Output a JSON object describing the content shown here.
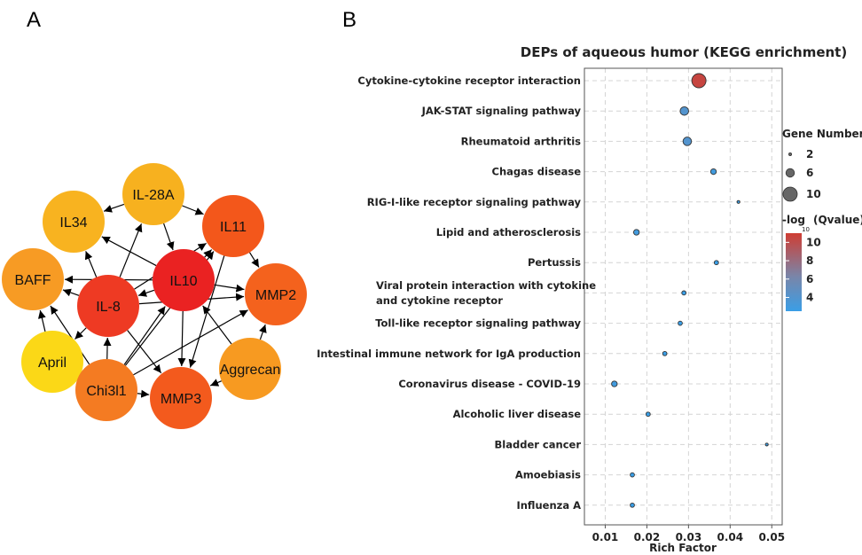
{
  "panel_a": {
    "letter": "A",
    "nodes": [
      {
        "id": "IL-28A",
        "label": "IL-28A",
        "color": "#f7b11f"
      },
      {
        "id": "IL34",
        "label": "IL34",
        "color": "#f8b320"
      },
      {
        "id": "IL11",
        "label": "IL11",
        "color": "#f3571b"
      },
      {
        "id": "BAFF",
        "label": "BAFF",
        "color": "#f79b24"
      },
      {
        "id": "IL10",
        "label": "IL10",
        "color": "#ea2222"
      },
      {
        "id": "IL-8",
        "label": "IL-8",
        "color": "#ee3a23"
      },
      {
        "id": "MMP2",
        "label": "MMP2",
        "color": "#f4621d"
      },
      {
        "id": "April",
        "label": "April",
        "color": "#fbd817"
      },
      {
        "id": "Aggrecan",
        "label": "Aggrecan",
        "color": "#f79a21"
      },
      {
        "id": "Chi3l1",
        "label": "Chi3l1",
        "color": "#f47b22"
      },
      {
        "id": "MMP3",
        "label": "MMP3",
        "color": "#f35a1d"
      }
    ],
    "edges": [
      [
        "IL-28A",
        "IL11"
      ],
      [
        "IL-28A",
        "IL34"
      ],
      [
        "IL-28A",
        "IL10"
      ],
      [
        "IL10",
        "IL34"
      ],
      [
        "IL10",
        "BAFF"
      ],
      [
        "IL10",
        "IL11"
      ],
      [
        "IL10",
        "MMP2"
      ],
      [
        "IL10",
        "MMP3"
      ],
      [
        "IL10",
        "IL-8"
      ],
      [
        "IL-8",
        "IL34"
      ],
      [
        "IL-8",
        "BAFF"
      ],
      [
        "IL-8",
        "IL-28A"
      ],
      [
        "IL-8",
        "IL11"
      ],
      [
        "IL-8",
        "MMP2"
      ],
      [
        "IL-8",
        "MMP3"
      ],
      [
        "IL-8",
        "April"
      ],
      [
        "IL11",
        "MMP2"
      ],
      [
        "IL11",
        "MMP3"
      ],
      [
        "Chi3l1",
        "IL-8"
      ],
      [
        "Chi3l1",
        "IL10"
      ],
      [
        "Chi3l1",
        "MMP2"
      ],
      [
        "Chi3l1",
        "MMP3"
      ],
      [
        "Chi3l1",
        "BAFF"
      ],
      [
        "Chi3l1",
        "IL11"
      ],
      [
        "Aggrecan",
        "MMP3"
      ],
      [
        "Aggrecan",
        "MMP2"
      ],
      [
        "Aggrecan",
        "IL10"
      ],
      [
        "April",
        "BAFF"
      ]
    ]
  },
  "panel_b": {
    "letter": "B"
  },
  "chart_data": {
    "type": "scatter",
    "title": "DEPs of aqueous humor (KEGG enrichment)",
    "xlabel": "Rich Factor",
    "ylabel": "",
    "xlim": [
      0.005,
      0.0525
    ],
    "x_ticks": [
      0.01,
      0.02,
      0.03,
      0.04,
      0.05
    ],
    "x_tick_labels": [
      "0.01",
      "0.02",
      "0.03",
      "0.04",
      "0.05"
    ],
    "grid": true,
    "categories": [
      "Cytokine-cytokine receptor interaction",
      "JAK-STAT signaling pathway",
      "Rheumatoid arthritis",
      "Chagas disease",
      "RIG-I-like receptor signaling pathway",
      "Lipid and atherosclerosis",
      "Pertussis",
      "Viral protein interaction with cytokine and cytokine receptor",
      "Toll-like receptor signaling pathway",
      "Intestinal immune network for IgA production",
      "Coronavirus disease - COVID-19",
      "Alcoholic liver disease",
      "Bladder cancer",
      "Amoebiasis",
      "Influenza A"
    ],
    "category_label_lines": [
      [
        "Cytokine-cytokine receptor interaction"
      ],
      [
        "JAK-STAT signaling pathway"
      ],
      [
        "Rheumatoid arthritis"
      ],
      [
        "Chagas disease"
      ],
      [
        "RIG-I-like receptor signaling pathway"
      ],
      [
        "Lipid and atherosclerosis"
      ],
      [
        "Pertussis"
      ],
      [
        "Viral protein interaction with cytokine",
        "and cytokine receptor"
      ],
      [
        "Toll-like receptor signaling pathway"
      ],
      [
        "Intestinal immune network for IgA production"
      ],
      [
        "Coronavirus disease - COVID-19"
      ],
      [
        "Alcoholic liver disease"
      ],
      [
        "Bladder cancer"
      ],
      [
        "Amoebiasis"
      ],
      [
        "Influenza A"
      ]
    ],
    "points": [
      {
        "rich_factor": 0.0325,
        "gene_number": 10,
        "neg_log10_qvalue": 10.5
      },
      {
        "rich_factor": 0.029,
        "gene_number": 6,
        "neg_log10_qvalue": 4
      },
      {
        "rich_factor": 0.0297,
        "gene_number": 6,
        "neg_log10_qvalue": 4
      },
      {
        "rich_factor": 0.036,
        "gene_number": 4,
        "neg_log10_qvalue": 3
      },
      {
        "rich_factor": 0.042,
        "gene_number": 2,
        "neg_log10_qvalue": 2.5
      },
      {
        "rich_factor": 0.0175,
        "gene_number": 4,
        "neg_log10_qvalue": 3
      },
      {
        "rich_factor": 0.0367,
        "gene_number": 3,
        "neg_log10_qvalue": 2.5
      },
      {
        "rich_factor": 0.0289,
        "gene_number": 3,
        "neg_log10_qvalue": 2.5
      },
      {
        "rich_factor": 0.028,
        "gene_number": 3,
        "neg_log10_qvalue": 2.5
      },
      {
        "rich_factor": 0.0243,
        "gene_number": 3,
        "neg_log10_qvalue": 2.5
      },
      {
        "rich_factor": 0.0122,
        "gene_number": 4,
        "neg_log10_qvalue": 3
      },
      {
        "rich_factor": 0.0203,
        "gene_number": 3,
        "neg_log10_qvalue": 2.5
      },
      {
        "rich_factor": 0.0488,
        "gene_number": 2,
        "neg_log10_qvalue": 2.5
      },
      {
        "rich_factor": 0.0165,
        "gene_number": 3,
        "neg_log10_qvalue": 2.5
      },
      {
        "rich_factor": 0.0165,
        "gene_number": 3,
        "neg_log10_qvalue": 2.5
      }
    ],
    "size_legend": {
      "title": "Gene Number",
      "values": [
        2,
        6,
        10
      ],
      "labels": [
        "2",
        "6",
        "10"
      ]
    },
    "color_legend": {
      "title": "-log",
      "title_sub": "10",
      "title_suffix": "(Qvalue)",
      "range": [
        2.5,
        11
      ],
      "ticks": [
        10,
        8,
        6,
        4
      ],
      "tick_labels": [
        "10",
        "8",
        "6",
        "4"
      ],
      "low_color": "#3a9ee6",
      "mid_color": "#7a85a8",
      "high_color": "#cf3d33"
    },
    "legend_placement": "right"
  }
}
